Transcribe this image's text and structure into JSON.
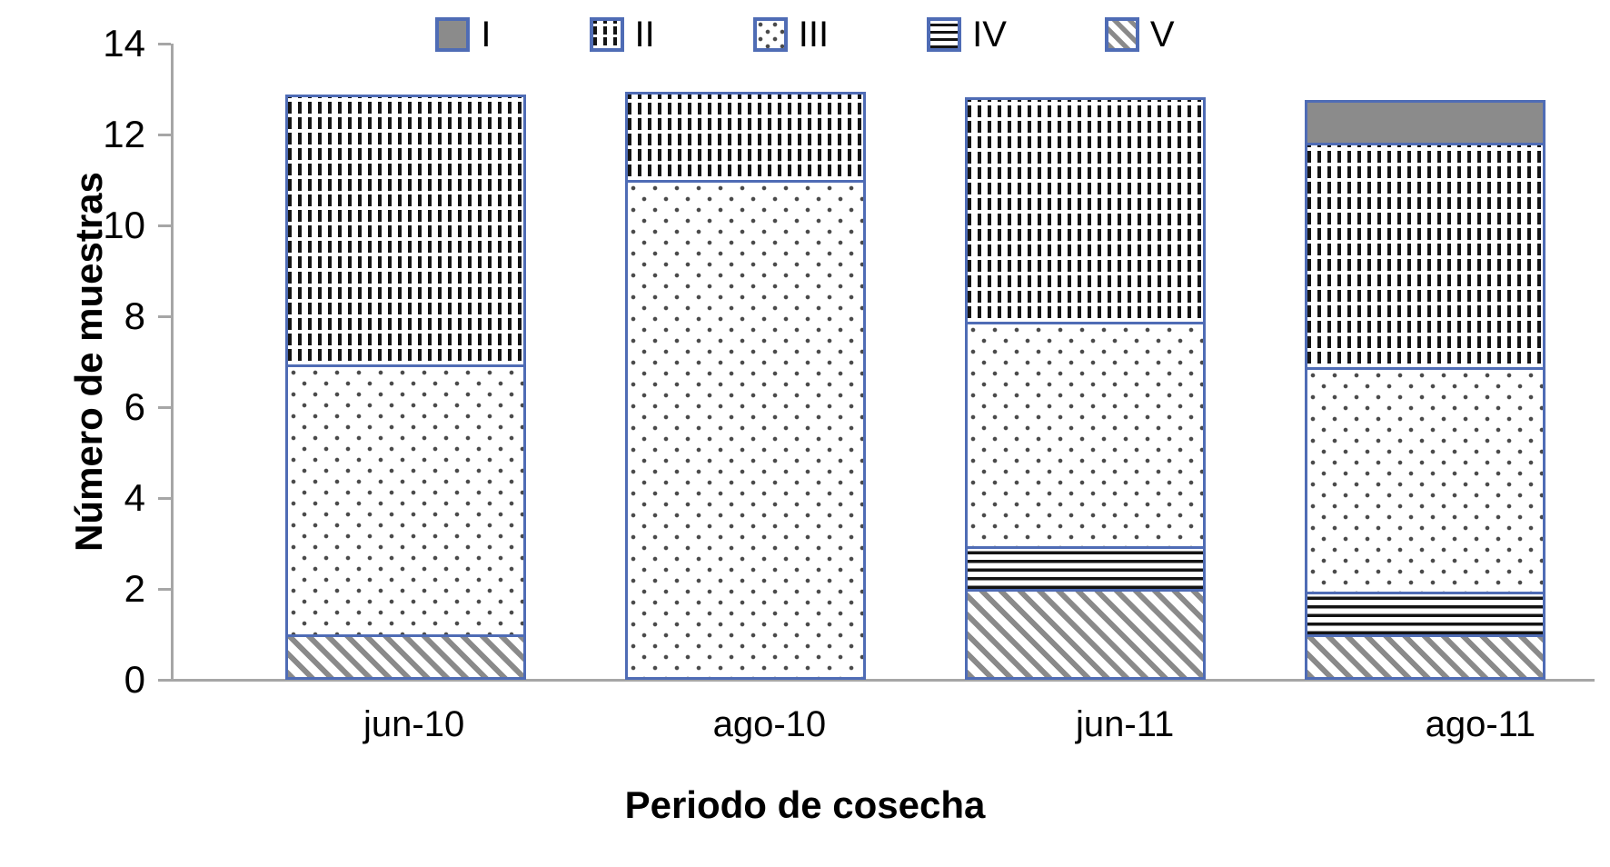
{
  "chart_data": {
    "type": "bar",
    "stacked": true,
    "title": "",
    "categories": [
      "jun-10",
      "ago-10",
      "jun-11",
      "ago-11"
    ],
    "series": [
      {
        "name": "I",
        "pattern": "solid-gray",
        "values": [
          0,
          0,
          0,
          1
        ]
      },
      {
        "name": "II",
        "pattern": "vertical-dashes",
        "values": [
          6,
          2,
          5,
          5
        ]
      },
      {
        "name": "III",
        "pattern": "dots",
        "values": [
          6,
          11,
          5,
          5
        ]
      },
      {
        "name": "IV",
        "pattern": "horizontal-lines",
        "values": [
          0,
          0,
          1,
          1
        ]
      },
      {
        "name": "V",
        "pattern": "diagonal-hatch",
        "values": [
          1,
          0,
          2,
          1
        ]
      }
    ],
    "stack_order_bottom_to_top": [
      "V",
      "IV",
      "III",
      "II",
      "I"
    ],
    "totals": [
      13,
      13,
      13,
      13
    ],
    "xlabel": "Periodo de cosecha",
    "ylabel": "Número de muestras",
    "ylim": [
      0,
      14
    ],
    "yticks": [
      0,
      2,
      4,
      6,
      8,
      10,
      12,
      14
    ],
    "legend_position": "top",
    "grid": false
  },
  "colors": {
    "segment_border": "#4f6cb5",
    "axis_line": "#a6a6a6",
    "solid_gray_fill": "#8b8b8b",
    "pattern_ink": "#141414",
    "hatch_gray": "#8a8a8a",
    "text": "#000000",
    "background": "#ffffff"
  }
}
